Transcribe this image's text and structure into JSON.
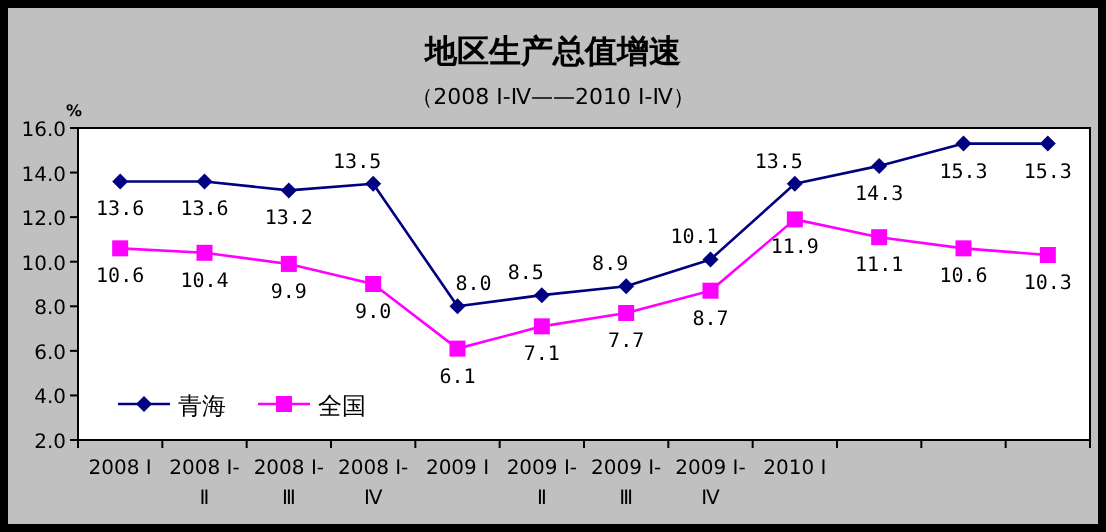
{
  "chart_data": {
    "type": "line",
    "title": "地区生产总值增速",
    "subtitle": "（2008 Ⅰ-Ⅳ——2010 Ⅰ-Ⅳ）",
    "annotations": [
      "%"
    ],
    "categories": [
      "2008 Ⅰ",
      "2008 Ⅰ-Ⅱ",
      "2008 Ⅰ-Ⅲ",
      "2008 Ⅰ-Ⅳ",
      "2009 Ⅰ",
      "2009 Ⅰ-Ⅱ",
      "2009 Ⅰ-Ⅲ",
      "2009 Ⅰ-Ⅳ",
      "2010 Ⅰ",
      null,
      null,
      null
    ],
    "series": [
      {
        "name": "青海",
        "color": "#000080",
        "marker": "diamond",
        "values": [
          13.6,
          13.6,
          13.2,
          13.5,
          8.0,
          8.5,
          8.9,
          10.1,
          13.5,
          14.3,
          15.3,
          15.3
        ],
        "value_labels": [
          "13.6",
          "13.6",
          "13.2",
          "13.5",
          "8.0",
          "8.5",
          "8.9",
          "10.1",
          "13.5",
          "14.3",
          "15.3",
          "15.3"
        ]
      },
      {
        "name": "全国",
        "color": "#ff00ff",
        "marker": "square",
        "values": [
          10.6,
          10.4,
          9.9,
          9.0,
          6.1,
          7.1,
          7.7,
          8.7,
          11.9,
          11.1,
          10.6,
          10.3
        ],
        "value_labels": [
          "10.6",
          "10.4",
          "9.9",
          "9.0",
          "6.1",
          "7.1",
          "7.7",
          "8.7",
          "11.9",
          "11.1",
          "10.6",
          "10.3"
        ]
      }
    ],
    "ylim": [
      2,
      16
    ],
    "yticks": [
      {
        "value": 2,
        "label": "2.0"
      },
      {
        "value": 4,
        "label": "4.0"
      },
      {
        "value": 6,
        "label": "6.0"
      },
      {
        "value": 8,
        "label": "8.0"
      },
      {
        "value": 10,
        "label": "10.0"
      },
      {
        "value": 12,
        "label": "12.0"
      },
      {
        "value": 14,
        "label": "14.0"
      },
      {
        "value": 16,
        "label": "16.0"
      }
    ],
    "grid": false,
    "legend": "bottom left",
    "line_style": "solid"
  }
}
